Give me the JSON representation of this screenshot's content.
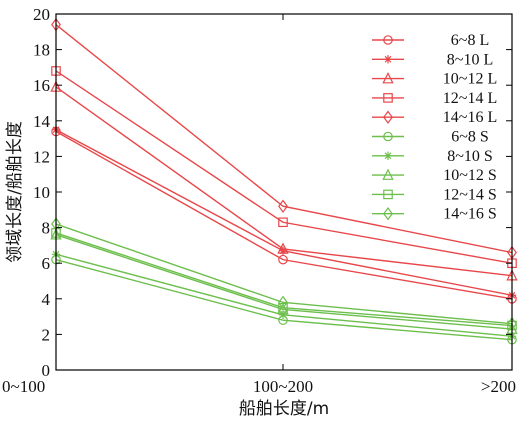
{
  "chart_data": {
    "type": "line",
    "title": "",
    "xlabel": "船舶长度/m",
    "ylabel": "领域长度/船舶长度",
    "categories": [
      "0~100",
      "100~200",
      ">200"
    ],
    "ylim": [
      0,
      20
    ],
    "yticks": [
      0,
      2,
      4,
      6,
      8,
      10,
      12,
      14,
      16,
      18,
      20
    ],
    "grid": false,
    "legend_position": "top-right",
    "series": [
      {
        "name": "6~8 L",
        "group": "L",
        "marker": "circle",
        "color": "#e8474a",
        "values": [
          13.4,
          6.2,
          4.0
        ]
      },
      {
        "name": "8~10 L",
        "group": "L",
        "marker": "asterisk",
        "color": "#e8474a",
        "values": [
          13.5,
          6.7,
          4.2
        ]
      },
      {
        "name": "10~12 L",
        "group": "L",
        "marker": "triangle",
        "color": "#e8474a",
        "values": [
          15.9,
          6.8,
          5.3
        ]
      },
      {
        "name": "12~14 L",
        "group": "L",
        "marker": "square",
        "color": "#e8474a",
        "values": [
          16.8,
          8.3,
          6.0
        ]
      },
      {
        "name": "14~16 L",
        "group": "L",
        "marker": "diamond",
        "color": "#e8474a",
        "values": [
          19.4,
          9.2,
          6.6
        ]
      },
      {
        "name": "6~8 S",
        "group": "S",
        "marker": "circle",
        "color": "#6cbf4c",
        "values": [
          6.2,
          2.8,
          1.7
        ]
      },
      {
        "name": "8~10 S",
        "group": "S",
        "marker": "asterisk",
        "color": "#6cbf4c",
        "values": [
          6.5,
          3.1,
          1.9
        ]
      },
      {
        "name": "10~12 S",
        "group": "S",
        "marker": "triangle",
        "color": "#6cbf4c",
        "values": [
          7.6,
          3.4,
          2.3
        ]
      },
      {
        "name": "12~14 S",
        "group": "S",
        "marker": "square",
        "color": "#6cbf4c",
        "values": [
          7.7,
          3.5,
          2.5
        ]
      },
      {
        "name": "14~16 S",
        "group": "S",
        "marker": "diamond",
        "color": "#6cbf4c",
        "values": [
          8.2,
          3.8,
          2.6
        ]
      }
    ]
  }
}
